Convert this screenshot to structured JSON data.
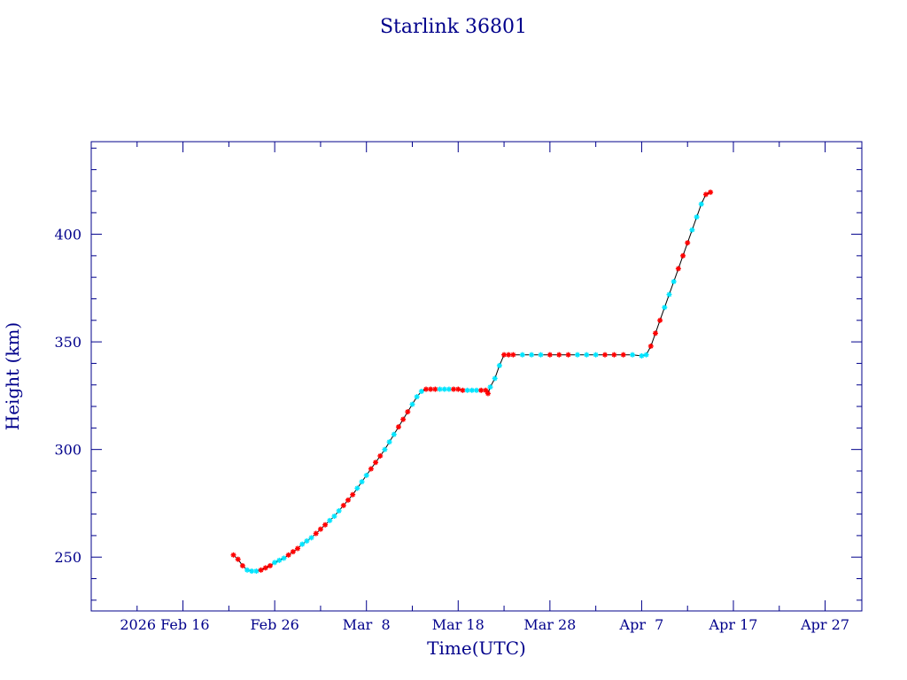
{
  "chart_data": {
    "type": "scatter",
    "title": "Starlink 36801",
    "xlabel": "Time(UTC)",
    "ylabel": "Height (km)",
    "xlim": [
      "2026-02-06",
      "2026-05-01"
    ],
    "ylim": [
      225,
      443
    ],
    "x_ticks": [
      {
        "date": "2026-02-16",
        "label": "2026 Feb 16"
      },
      {
        "date": "2026-02-26",
        "label": "Feb 26"
      },
      {
        "date": "2026-03-08",
        "label": "Mar  8"
      },
      {
        "date": "2026-03-18",
        "label": "Mar 18"
      },
      {
        "date": "2026-03-28",
        "label": "Mar 28"
      },
      {
        "date": "2026-04-07",
        "label": "Apr  7"
      },
      {
        "date": "2026-04-17",
        "label": "Apr 17"
      },
      {
        "date": "2026-04-27",
        "label": "Apr 27"
      }
    ],
    "y_ticks": [
      250,
      300,
      350,
      400
    ],
    "grid": false,
    "legend": "none",
    "colors": {
      "axis": "#00008b",
      "line": "#000000",
      "marker_a": "#ff0000",
      "marker_b": "#00e5ff"
    },
    "series": [
      {
        "color": "#000000",
        "markers": [
          "#ff0000",
          "#00e5ff"
        ],
        "points": [
          [
            "2026-02-21T12:00",
            251
          ],
          [
            "2026-02-22T00:00",
            249
          ],
          [
            "2026-02-22T12:00",
            246
          ],
          [
            "2026-02-23T00:00",
            244
          ],
          [
            "2026-02-23T12:00",
            243.5
          ],
          [
            "2026-02-24T00:00",
            243.5
          ],
          [
            "2026-02-24T12:00",
            244
          ],
          [
            "2026-02-25T00:00",
            245
          ],
          [
            "2026-02-25T12:00",
            246
          ],
          [
            "2026-02-26T00:00",
            247.5
          ],
          [
            "2026-02-26T12:00",
            248.5
          ],
          [
            "2026-02-27T00:00",
            249.5
          ],
          [
            "2026-02-27T12:00",
            251
          ],
          [
            "2026-02-28T00:00",
            252.5
          ],
          [
            "2026-02-28T12:00",
            254
          ],
          [
            "2026-03-01T00:00",
            256
          ],
          [
            "2026-03-01T12:00",
            257.5
          ],
          [
            "2026-03-02T00:00",
            259
          ],
          [
            "2026-03-02T12:00",
            261
          ],
          [
            "2026-03-03T00:00",
            263
          ],
          [
            "2026-03-03T12:00",
            265
          ],
          [
            "2026-03-04T00:00",
            267
          ],
          [
            "2026-03-04T12:00",
            269
          ],
          [
            "2026-03-05T00:00",
            271.5
          ],
          [
            "2026-03-05T12:00",
            274
          ],
          [
            "2026-03-06T00:00",
            276.5
          ],
          [
            "2026-03-06T12:00",
            279
          ],
          [
            "2026-03-07T00:00",
            282
          ],
          [
            "2026-03-07T12:00",
            285
          ],
          [
            "2026-03-08T00:00",
            288
          ],
          [
            "2026-03-08T12:00",
            291
          ],
          [
            "2026-03-09T00:00",
            294
          ],
          [
            "2026-03-09T12:00",
            297
          ],
          [
            "2026-03-10T00:00",
            300
          ],
          [
            "2026-03-10T12:00",
            303.5
          ],
          [
            "2026-03-11T00:00",
            307
          ],
          [
            "2026-03-11T12:00",
            310.5
          ],
          [
            "2026-03-12T00:00",
            314
          ],
          [
            "2026-03-12T12:00",
            317.5
          ],
          [
            "2026-03-13T00:00",
            321
          ],
          [
            "2026-03-13T12:00",
            324.5
          ],
          [
            "2026-03-14T00:00",
            327
          ],
          [
            "2026-03-14T12:00",
            328
          ],
          [
            "2026-03-15T00:00",
            328
          ],
          [
            "2026-03-15T12:00",
            328
          ],
          [
            "2026-03-16T00:00",
            328
          ],
          [
            "2026-03-16T12:00",
            328
          ],
          [
            "2026-03-17T00:00",
            328
          ],
          [
            "2026-03-17T12:00",
            328
          ],
          [
            "2026-03-18T00:00",
            328
          ],
          [
            "2026-03-18T12:00",
            327.5
          ],
          [
            "2026-03-19T00:00",
            327.5
          ],
          [
            "2026-03-19T12:00",
            327.5
          ],
          [
            "2026-03-20T00:00",
            327.5
          ],
          [
            "2026-03-20T12:00",
            327.5
          ],
          [
            "2026-03-21T00:00",
            327.5
          ],
          [
            "2026-03-21T06:00",
            326
          ],
          [
            "2026-03-21T12:00",
            329
          ],
          [
            "2026-03-22T00:00",
            333
          ],
          [
            "2026-03-22T12:00",
            339
          ],
          [
            "2026-03-23T00:00",
            344
          ],
          [
            "2026-03-23T12:00",
            344
          ],
          [
            "2026-03-24T00:00",
            344
          ],
          [
            "2026-03-25T00:00",
            344
          ],
          [
            "2026-03-26T00:00",
            344
          ],
          [
            "2026-03-27T00:00",
            344
          ],
          [
            "2026-03-28T00:00",
            344
          ],
          [
            "2026-03-29T00:00",
            344
          ],
          [
            "2026-03-30T00:00",
            344
          ],
          [
            "2026-03-31T00:00",
            344
          ],
          [
            "2026-04-01T00:00",
            344
          ],
          [
            "2026-04-02T00:00",
            344
          ],
          [
            "2026-04-03T00:00",
            344
          ],
          [
            "2026-04-04T00:00",
            344
          ],
          [
            "2026-04-05T00:00",
            344
          ],
          [
            "2026-04-06T00:00",
            344
          ],
          [
            "2026-04-07T00:00",
            343.5
          ],
          [
            "2026-04-07T12:00",
            344
          ],
          [
            "2026-04-08T00:00",
            348
          ],
          [
            "2026-04-08T12:00",
            354
          ],
          [
            "2026-04-09T00:00",
            360
          ],
          [
            "2026-04-09T12:00",
            366
          ],
          [
            "2026-04-10T00:00",
            372
          ],
          [
            "2026-04-10T12:00",
            378
          ],
          [
            "2026-04-11T00:00",
            384
          ],
          [
            "2026-04-11T12:00",
            390
          ],
          [
            "2026-04-12T00:00",
            396
          ],
          [
            "2026-04-12T12:00",
            402
          ],
          [
            "2026-04-13T00:00",
            408
          ],
          [
            "2026-04-13T12:00",
            414
          ],
          [
            "2026-04-14T00:00",
            418.5
          ],
          [
            "2026-04-14T12:00",
            419.5
          ]
        ]
      }
    ]
  }
}
